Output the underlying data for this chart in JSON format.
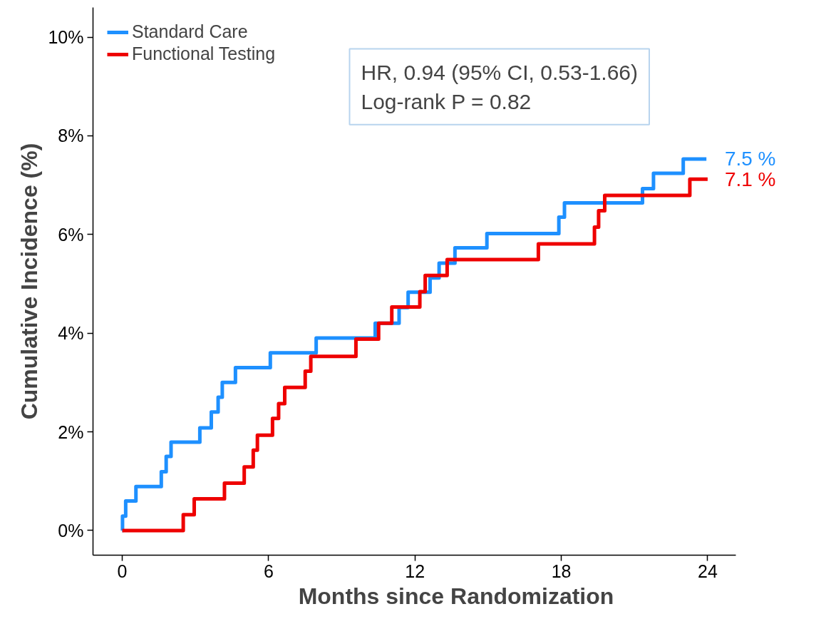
{
  "chart_data": {
    "type": "step",
    "xlabel": "Months since Randomization",
    "ylabel": "Cumulative Incidence (%)",
    "series": [
      {
        "name": "Standard Care",
        "color": "#1e90ff",
        "x": [
          0,
          0.01,
          0.14,
          0.56,
          1.6,
          1.8,
          2.0,
          3.18,
          3.65,
          3.93,
          4.1,
          4.64,
          6.07,
          7.95,
          10.37,
          11.35,
          11.72,
          12.62,
          12.99,
          13.64,
          14.95,
          17.9,
          18.13,
          21.33,
          21.78,
          23.0,
          23.95
        ],
        "values": [
          0,
          0.29,
          0.6,
          0.89,
          1.19,
          1.5,
          1.79,
          2.08,
          2.4,
          2.7,
          3.0,
          3.3,
          3.6,
          3.9,
          4.2,
          4.52,
          4.83,
          5.12,
          5.42,
          5.73,
          6.02,
          6.35,
          6.64,
          6.93,
          7.24,
          7.53,
          7.53
        ]
      },
      {
        "name": "Functional Testing",
        "color": "#ee0000",
        "x": [
          0,
          2.5,
          2.95,
          4.19,
          5.0,
          5.37,
          5.54,
          6.16,
          6.41,
          6.66,
          7.5,
          7.73,
          9.58,
          10.51,
          11.05,
          12.2,
          12.42,
          13.32,
          17.06,
          19.36,
          19.53,
          19.78,
          23.27,
          24.0
        ],
        "values": [
          0,
          0.32,
          0.64,
          0.96,
          1.29,
          1.63,
          1.93,
          2.27,
          2.57,
          2.9,
          3.23,
          3.53,
          3.88,
          4.2,
          4.53,
          4.84,
          5.17,
          5.49,
          5.81,
          6.15,
          6.48,
          6.79,
          7.12,
          7.12
        ]
      }
    ],
    "annotations": [
      {
        "text": "7.5 %",
        "x": 24.0,
        "y": 7.53
      },
      {
        "text": "7.1 %",
        "x": 24.0,
        "y": 7.12
      },
      "HR, 0.94 (95% CI, 0.53-1.66)",
      "Log-rank P = 0.82"
    ],
    "xlim": [
      -1.2,
      25.15
    ],
    "ylim": [
      -0.5,
      10.6
    ],
    "xticks": [
      0,
      6,
      12,
      18,
      24
    ],
    "yticks": [
      {
        "value": 0,
        "label": "0%"
      },
      {
        "value": 2,
        "label": "2%"
      },
      {
        "value": 4,
        "label": "4%"
      },
      {
        "value": 6,
        "label": "6%"
      },
      {
        "value": 8,
        "label": "8%"
      },
      {
        "value": 10,
        "label": "10%"
      }
    ],
    "grid": false,
    "legend": "top left",
    "line_style": "solid"
  }
}
